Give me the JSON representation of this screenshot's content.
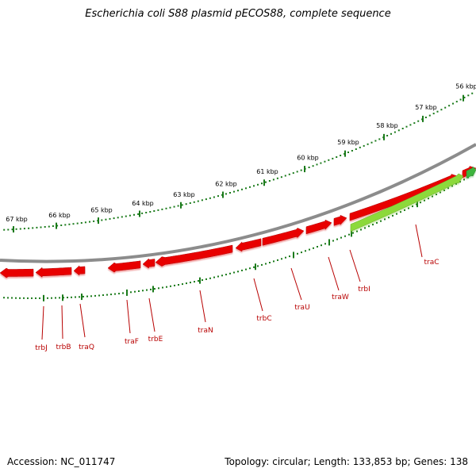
{
  "header": {
    "title": "Escherichia coli S88 plasmid pECOS88, complete sequence"
  },
  "footer": {
    "accession": "Accession: NC_011747",
    "summary": "Topology: circular; Length: 133,853 bp; Genes: 138"
  },
  "scale_labels": [
    "56 kbp",
    "57 kbp",
    "58 kbp",
    "59 kbp",
    "60 kbp",
    "61 kbp",
    "62 kbp",
    "63 kbp",
    "64 kbp",
    "65 kbp",
    "66 kbp",
    "67 kbp"
  ],
  "gene_labels": [
    "traC",
    "trbI",
    "traW",
    "traU",
    "trbC",
    "traN",
    "trbE",
    "traF",
    "traQ",
    "trbB",
    "trbJ"
  ],
  "colors": {
    "backbone": "#8c8c8c",
    "forward_genes": "#e80000",
    "reverse_gene": "#8cd93a",
    "reverse_gene_right": "#3cb43c",
    "ticks": "#1a7a1a",
    "gene_label": "#b80000"
  }
}
